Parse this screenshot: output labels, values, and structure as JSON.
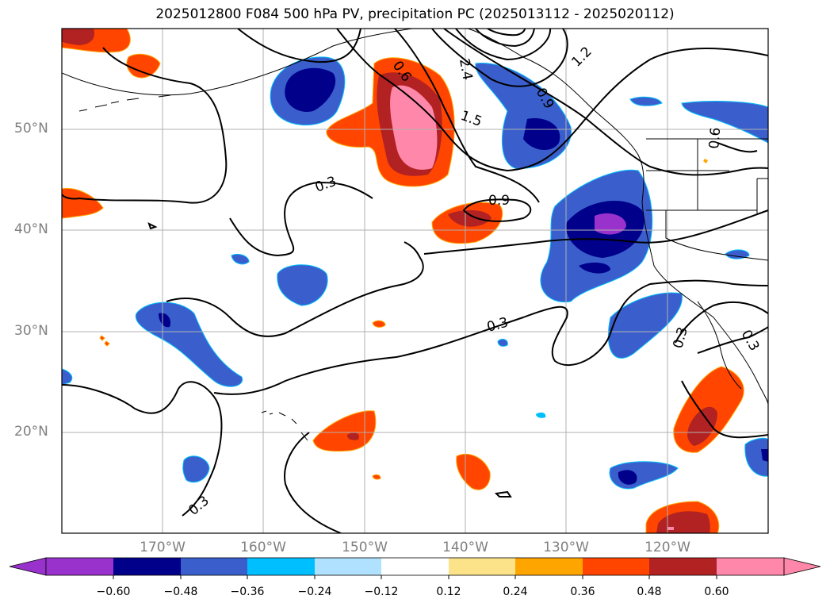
{
  "title": "2025012800 F084 500 hPa PV, precipitation PC (2025013112 - 2025020112)",
  "map": {
    "projection": "PlateCarree",
    "lon_range": [
      -180,
      -110
    ],
    "lat_range": [
      10,
      60
    ],
    "gridlines": true,
    "lat_labels": [
      "50°N",
      "40°N",
      "30°N",
      "20°N"
    ],
    "lon_labels": [
      "170°W",
      "160°W",
      "150°W",
      "140°W",
      "130°W",
      "120°W"
    ],
    "contour_labels": [
      "0.3",
      "0.6",
      "2.4",
      "1.2",
      "1.5",
      "0.9",
      "0.9",
      "0.3",
      "0.3",
      "0.6",
      "0.3",
      "0.3"
    ]
  },
  "colorbar": {
    "ticks": [
      "−0.60",
      "−0.48",
      "−0.36",
      "−0.24",
      "−0.12",
      "0.12",
      "0.24",
      "0.36",
      "0.48",
      "0.60"
    ],
    "colors": [
      "#9932cc",
      "#00008b",
      "#3a5fcd",
      "#00bfff",
      "#b0e2ff",
      "#ffffff",
      "#fce38a",
      "#ffa500",
      "#ff4500",
      "#b22222",
      "#ff88aa"
    ]
  }
}
